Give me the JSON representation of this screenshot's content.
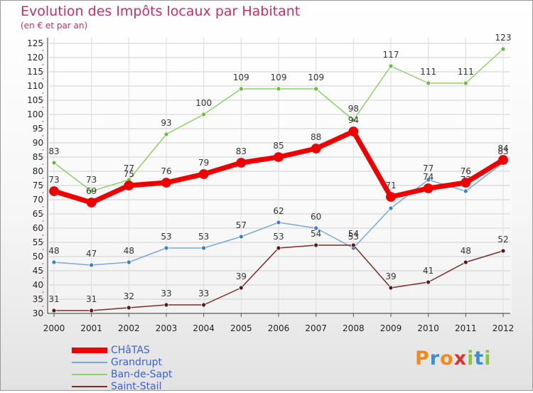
{
  "title": "Evolution des Impôts locaux par Habitant",
  "subtitle": "(en € et par an)",
  "logo": {
    "text": "Proxiti",
    "colors": [
      "#f08a1c",
      "#3a8fd6",
      "#f08a1c",
      "#e0302a",
      "#8cc63f",
      "#3a8fd6",
      "#8cc63f"
    ]
  },
  "chart_data": {
    "type": "line",
    "title": "Evolution des Impôts locaux par Habitant",
    "subtitle": "(en € et par an)",
    "xlabel": "",
    "ylabel": "",
    "ylim": [
      30,
      125
    ],
    "y_ticks": [
      30,
      35,
      40,
      45,
      50,
      55,
      60,
      65,
      70,
      75,
      80,
      85,
      90,
      95,
      100,
      105,
      110,
      115,
      120,
      125
    ],
    "grid": true,
    "x": [
      "2000",
      "2001",
      "2002",
      "2003",
      "2004",
      "2005",
      "2006",
      "2007",
      "2008",
      "2009",
      "2010",
      "2011",
      "2012"
    ],
    "series": [
      {
        "name": "Ban-de-Sapt",
        "color": "#8fd16a",
        "marker": "#6bbd3a",
        "emphasis": false,
        "values": [
          83,
          73,
          77,
          93,
          100,
          109,
          109,
          109,
          98,
          117,
          111,
          111,
          123
        ]
      },
      {
        "name": "Grandrupt",
        "color": "#7aa9d8",
        "marker": "#3f7fc0",
        "emphasis": false,
        "values": [
          48,
          47,
          48,
          53,
          53,
          57,
          62,
          60,
          53,
          67,
          77,
          73,
          83
        ]
      },
      {
        "name": "Saint-Stail",
        "color": "#7a2a2a",
        "marker": "#5a1a1a",
        "emphasis": false,
        "values": [
          31,
          31,
          32,
          33,
          33,
          39,
          53,
          54,
          54,
          39,
          41,
          48,
          52
        ]
      },
      {
        "name": "CHâTAS",
        "color": "#ee0000",
        "marker": "#ee0000",
        "emphasis": true,
        "values": [
          73,
          69,
          75,
          76,
          79,
          83,
          85,
          88,
          94,
          71,
          74,
          76,
          84
        ]
      }
    ],
    "legend": [
      "CHâTAS",
      "Grandrupt",
      "Ban-de-Sapt",
      "Saint-Stail"
    ],
    "legend_position": "bottom-left"
  }
}
